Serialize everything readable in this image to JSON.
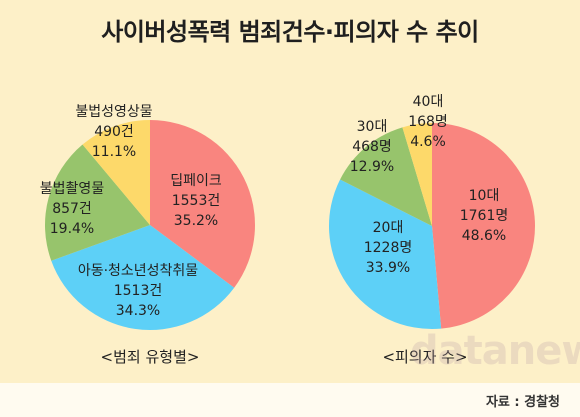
{
  "title": "사이버성폭력 범죄건수·피의자 수 추이",
  "source": "자료 : 경찰청",
  "watermark": "datanews",
  "chart_data": [
    {
      "type": "pie",
      "caption": "<범죄 유형별>",
      "start_angle_deg": 0,
      "slices": [
        {
          "label": "딥페이크",
          "value_text": "1553건",
          "percent_text": "35.2%",
          "value": 1553,
          "percent": 35.2,
          "color": "#f9857f"
        },
        {
          "label": "아동·청소년성착취물",
          "value_text": "1513건",
          "percent_text": "34.3%",
          "value": 1513,
          "percent": 34.3,
          "color": "#5dd0f7"
        },
        {
          "label": "불법촬영물",
          "value_text": "857건",
          "percent_text": "19.4%",
          "value": 857,
          "percent": 19.4,
          "color": "#97c46c"
        },
        {
          "label": "불법성영상물",
          "value_text": "490건",
          "percent_text": "11.1%",
          "value": 490,
          "percent": 11.1,
          "color": "#fdd96a"
        }
      ]
    },
    {
      "type": "pie",
      "caption": "<피의자 수>",
      "start_angle_deg": 0,
      "slices": [
        {
          "label": "10대",
          "value_text": "1761명",
          "percent_text": "48.6%",
          "value": 1761,
          "percent": 48.6,
          "color": "#f9857f"
        },
        {
          "label": "20대",
          "value_text": "1228명",
          "percent_text": "33.9%",
          "value": 1228,
          "percent": 33.9,
          "color": "#5dd0f7"
        },
        {
          "label": "30대",
          "value_text": "468명",
          "percent_text": "12.9%",
          "value": 468,
          "percent": 12.9,
          "color": "#97c46c"
        },
        {
          "label": "40대",
          "value_text": "168명",
          "percent_text": "4.6%",
          "value": 168,
          "percent": 4.6,
          "color": "#fdd96a"
        }
      ]
    }
  ]
}
